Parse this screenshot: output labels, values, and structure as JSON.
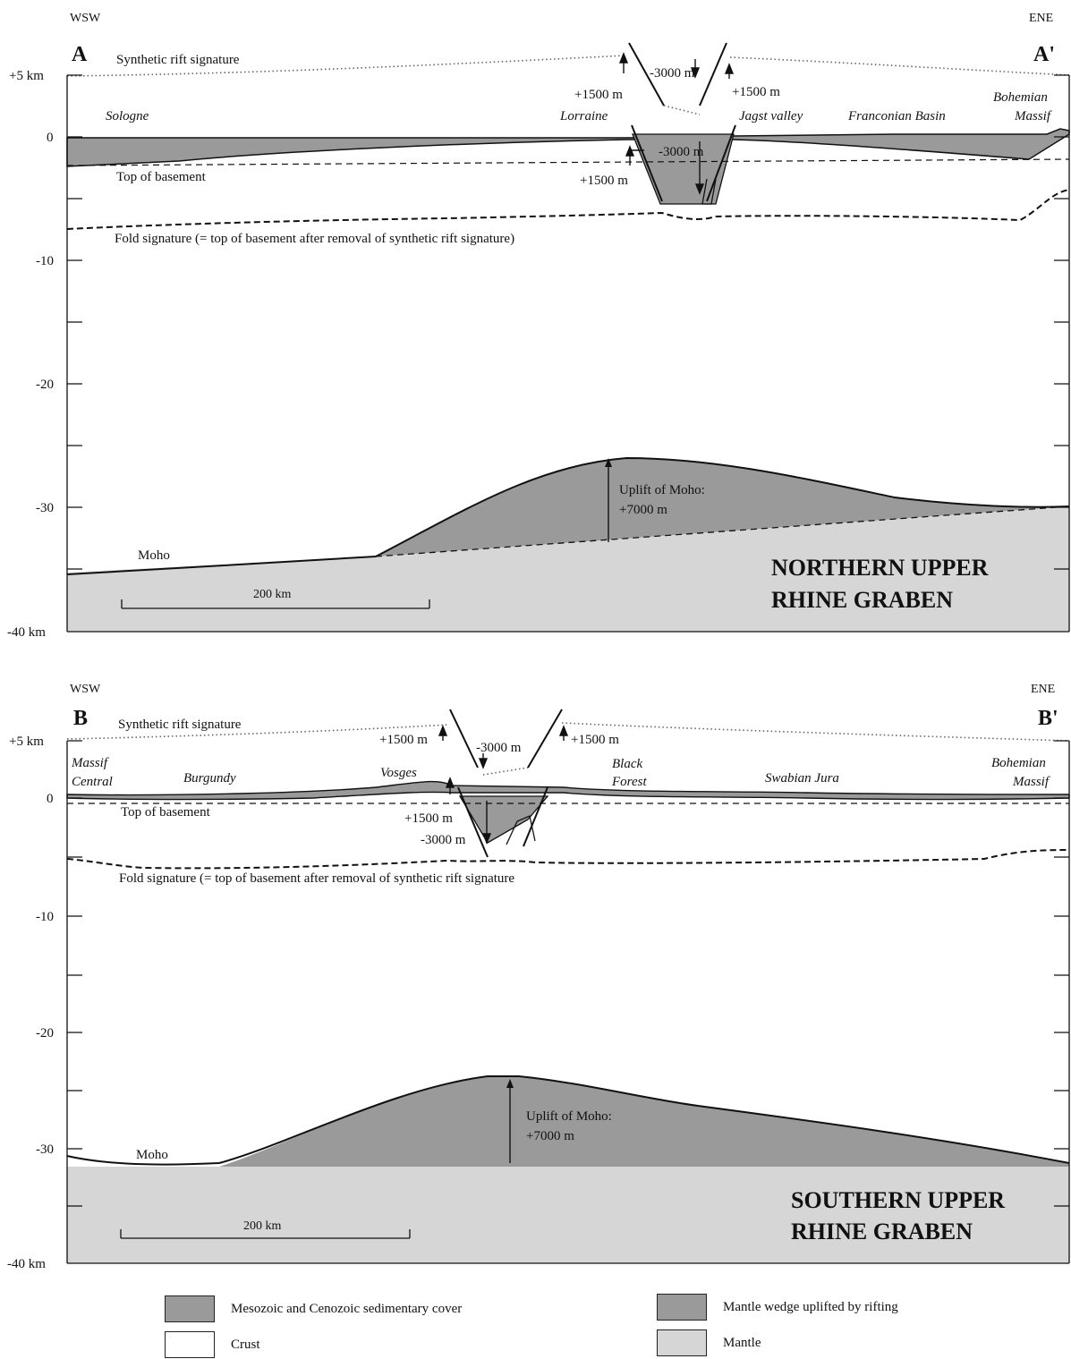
{
  "panels": [
    {
      "id": "A",
      "orientation_left": "WSW",
      "orientation_right": "ENE",
      "label_left": "A",
      "label_right": "A'",
      "synthetic_label": "Synthetic rift signature",
      "y_ticks": [
        "+5  km",
        "0",
        "-10",
        "-20",
        "-30",
        "-40 km"
      ],
      "places": [
        "Sologne",
        "Lorraine",
        "Jagst valley",
        "Franconian Basin",
        "Bohemian",
        "Massif"
      ],
      "top_basement": "Top of basement",
      "fold_signature": "Fold signature (= top of basement after removal of synthetic rift signature)",
      "uplift_up": "+1500 m",
      "uplift_up_right": "+1500 m",
      "subsidence": "-3000 m",
      "subsidence_graben": "-3000 m",
      "uplift_graben": "+1500 m",
      "moho": "Moho",
      "uplift_moho_1": "Uplift of Moho:",
      "uplift_moho_2": "+7000 m",
      "scale": "200 km",
      "title_1": "NORTHERN UPPER",
      "title_2": "RHINE GRABEN"
    },
    {
      "id": "B",
      "orientation_left": "WSW",
      "orientation_right": "ENE",
      "label_left": "B",
      "label_right": "B'",
      "synthetic_label": "Synthetic rift signature",
      "y_ticks": [
        "+5 km",
        "0",
        "-10",
        "-20",
        "-30",
        "-40 km"
      ],
      "places": [
        "Massif",
        "Central",
        "Burgundy",
        "Vosges",
        "Black",
        "Forest",
        "Swabian Jura",
        "Bohemian",
        "Massif"
      ],
      "top_basement": "Top of basement",
      "fold_signature": "Fold signature (= top of basement after removal of synthetic rift signature",
      "uplift_up": "+1500 m",
      "uplift_up_right": "+1500 m",
      "subsidence": "-3000 m",
      "subsidence_graben": "-3000 m",
      "uplift_graben": "+1500 m",
      "moho": "Moho",
      "uplift_moho_1": "Uplift of Moho:",
      "uplift_moho_2": "+7000 m",
      "scale": "200 km",
      "title_1": "SOUTHERN UPPER",
      "title_2": "RHINE GRABEN"
    }
  ],
  "legend": {
    "sediment": "Mesozoic and Cenozoic sedimentary cover",
    "crust": "Crust",
    "wedge": "Mantle wedge uplifted by rifting",
    "mantle": "Mantle"
  },
  "colors": {
    "sediment": "#9a9a9a",
    "wedge": "#9a9a9a",
    "mantle": "#d6d6d6",
    "crust": "#ffffff",
    "line": "#111111"
  }
}
